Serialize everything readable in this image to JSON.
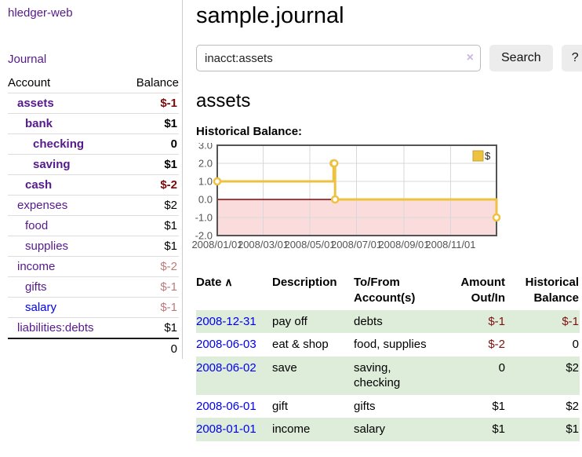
{
  "app": {
    "title": "hledger-web"
  },
  "sidebar": {
    "journal_link": "Journal",
    "headers": {
      "account": "Account",
      "balance": "Balance"
    },
    "accounts": [
      {
        "name": "assets",
        "balance": "$-1",
        "level": 1,
        "bold": true,
        "neg": "strong"
      },
      {
        "name": "bank",
        "balance": "$1",
        "level": 2,
        "bold": true,
        "neg": "none"
      },
      {
        "name": "checking",
        "balance": "0",
        "level": 3,
        "bold": true,
        "neg": "none"
      },
      {
        "name": "saving",
        "balance": "$1",
        "level": 3,
        "bold": true,
        "neg": "none"
      },
      {
        "name": "cash",
        "balance": "$-2",
        "level": 2,
        "bold": true,
        "neg": "strong"
      },
      {
        "name": "expenses",
        "balance": "$2",
        "level": 1,
        "bold": false,
        "neg": "none"
      },
      {
        "name": "food",
        "balance": "$1",
        "level": 2,
        "bold": false,
        "neg": "none"
      },
      {
        "name": "supplies",
        "balance": "$1",
        "level": 2,
        "bold": false,
        "neg": "none"
      },
      {
        "name": "income",
        "balance": "$-2",
        "level": 1,
        "bold": false,
        "neg": "soft"
      },
      {
        "name": "gifts",
        "balance": "$-1",
        "level": 2,
        "bold": false,
        "neg": "soft"
      },
      {
        "name": "salary",
        "balance": "$-1",
        "level": 2,
        "bold": false,
        "neg": "soft",
        "unvisited": true
      },
      {
        "name": "liabilities:debts",
        "balance": "$1",
        "level": 1,
        "bold": false,
        "neg": "none"
      }
    ],
    "total": "0"
  },
  "main": {
    "title": "sample.journal",
    "search": {
      "value": "inacct:assets",
      "clear_icon": "×",
      "button_label": "Search",
      "help_label": "?"
    },
    "account_heading": "assets",
    "chart_label": "Historical Balance:"
  },
  "chart_data": {
    "type": "line",
    "step": true,
    "title": "Historical Balance:",
    "series": [
      {
        "name": "$",
        "color": "#edc240",
        "points": [
          [
            "2008-01-01",
            1
          ],
          [
            "2008-06-01",
            2
          ],
          [
            "2008-06-02",
            2
          ],
          [
            "2008-06-03",
            0
          ],
          [
            "2008-12-31",
            -1
          ]
        ]
      }
    ],
    "x_range": [
      "2008-01-01",
      "2008-12-31"
    ],
    "x_ticks": [
      "2008/01/01",
      "2008/03/01",
      "2008/05/01",
      "2008/07/01",
      "2008/09/01",
      "2008/11/01"
    ],
    "y_ticks": [
      3.0,
      2.0,
      1.0,
      0.0,
      -1.0,
      -2.0
    ],
    "ylim": [
      -2,
      3
    ],
    "grid": true,
    "legend_position": "top-right",
    "legend_label": "$",
    "below_zero_fill": "#fbdcdc",
    "zero_line_color": "#8b0000",
    "grid_color": "#d8d8d8",
    "border_color": "#545454"
  },
  "register": {
    "headers": [
      {
        "label": "Date",
        "sort": "∧",
        "align": "left"
      },
      {
        "label": "Description",
        "align": "left"
      },
      {
        "label": "To/From Account(s)",
        "align": "left"
      },
      {
        "label": "Amount Out/In",
        "align": "right"
      },
      {
        "label": "Historical Balance",
        "align": "right"
      }
    ],
    "rows": [
      {
        "date": "2008-12-31",
        "description": "pay off",
        "accounts": "debts",
        "amount": "$-1",
        "amount_neg": true,
        "balance": "$-1",
        "balance_neg": true,
        "shaded": true
      },
      {
        "date": "2008-06-03",
        "description": "eat & shop",
        "accounts": "food, supplies",
        "amount": "$-2",
        "amount_neg": true,
        "balance": "0",
        "balance_neg": false,
        "shaded": false
      },
      {
        "date": "2008-06-02",
        "description": "save",
        "accounts": "saving, checking",
        "amount": "0",
        "amount_neg": false,
        "balance": "$2",
        "balance_neg": false,
        "shaded": true
      },
      {
        "date": "2008-06-01",
        "description": "gift",
        "accounts": "gifts",
        "amount": "$1",
        "amount_neg": false,
        "balance": "$2",
        "balance_neg": false,
        "shaded": false
      },
      {
        "date": "2008-01-01",
        "description": "income",
        "accounts": "salary",
        "amount": "$1",
        "amount_neg": false,
        "balance": "$1",
        "balance_neg": false,
        "shaded": true
      }
    ]
  }
}
